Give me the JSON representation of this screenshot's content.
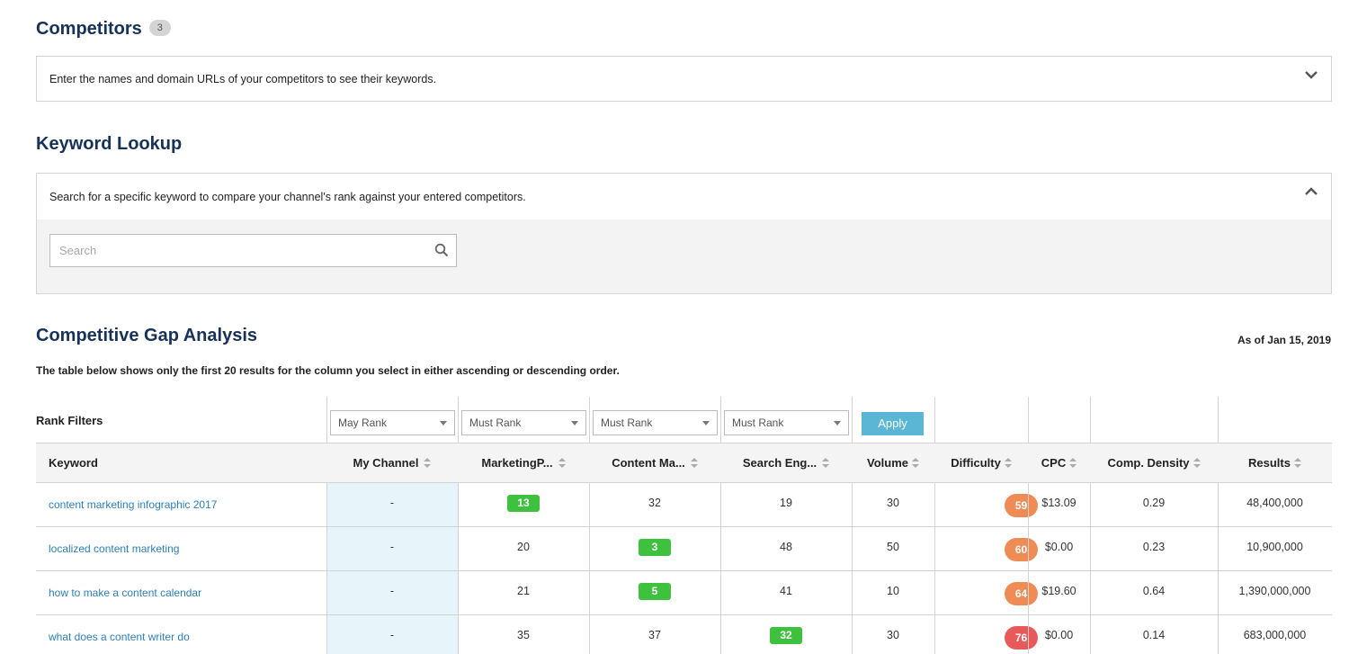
{
  "competitors": {
    "title": "Competitors",
    "count": "3",
    "description": "Enter the names and domain URLs of your competitors to see their keywords."
  },
  "keyword_lookup": {
    "title": "Keyword Lookup",
    "description": "Search for a specific keyword to compare your channel's rank against your entered competitors.",
    "search_placeholder": "Search",
    "search_value": ""
  },
  "gap_analysis": {
    "title": "Competitive Gap Analysis",
    "as_of": "As of Jan 15, 2019",
    "description": "The table below shows only the first 20 results for the column you select in either ascending or descending order.",
    "rank_filters_label": "Rank Filters",
    "filters": [
      "May Rank",
      "Must Rank",
      "Must Rank",
      "Must Rank"
    ],
    "apply_label": "Apply",
    "columns": [
      "Keyword",
      "My Channel",
      "MarketingP...",
      "Content Ma...",
      "Search Eng...",
      "Volume",
      "Difficulty",
      "CPC",
      "Comp. Density",
      "Results"
    ],
    "rows": [
      {
        "keyword": "content marketing infographic 2017",
        "my_channel": "-",
        "c1": "13",
        "c2": "32",
        "c3": "19",
        "volume": "30",
        "difficulty": "59",
        "cpc": "$13.09",
        "density": "0.29",
        "results": "48,400,000",
        "best": 1,
        "diff_color": "#ef8b55"
      },
      {
        "keyword": "localized content marketing",
        "my_channel": "-",
        "c1": "20",
        "c2": "3",
        "c3": "48",
        "volume": "50",
        "difficulty": "60",
        "cpc": "$0.00",
        "density": "0.23",
        "results": "10,900,000",
        "best": 2,
        "diff_color": "#ef8b55"
      },
      {
        "keyword": "how to make a content calendar",
        "my_channel": "-",
        "c1": "21",
        "c2": "5",
        "c3": "41",
        "volume": "10",
        "difficulty": "64",
        "cpc": "$19.60",
        "density": "0.64",
        "results": "1,390,000,000",
        "best": 2,
        "diff_color": "#ef8b55"
      },
      {
        "keyword": "what does a content writer do",
        "my_channel": "-",
        "c1": "35",
        "c2": "37",
        "c3": "32",
        "volume": "30",
        "difficulty": "76",
        "cpc": "$0.00",
        "density": "0.14",
        "results": "683,000,000",
        "best": 3,
        "diff_color": "#e85a5a"
      }
    ]
  },
  "colors": {
    "heading": "#17325a",
    "link": "#2a7fc1",
    "apply": "#5bb5d5",
    "rank_best": "#3ec13e",
    "my_channel_bg": "#e7f4f9"
  }
}
